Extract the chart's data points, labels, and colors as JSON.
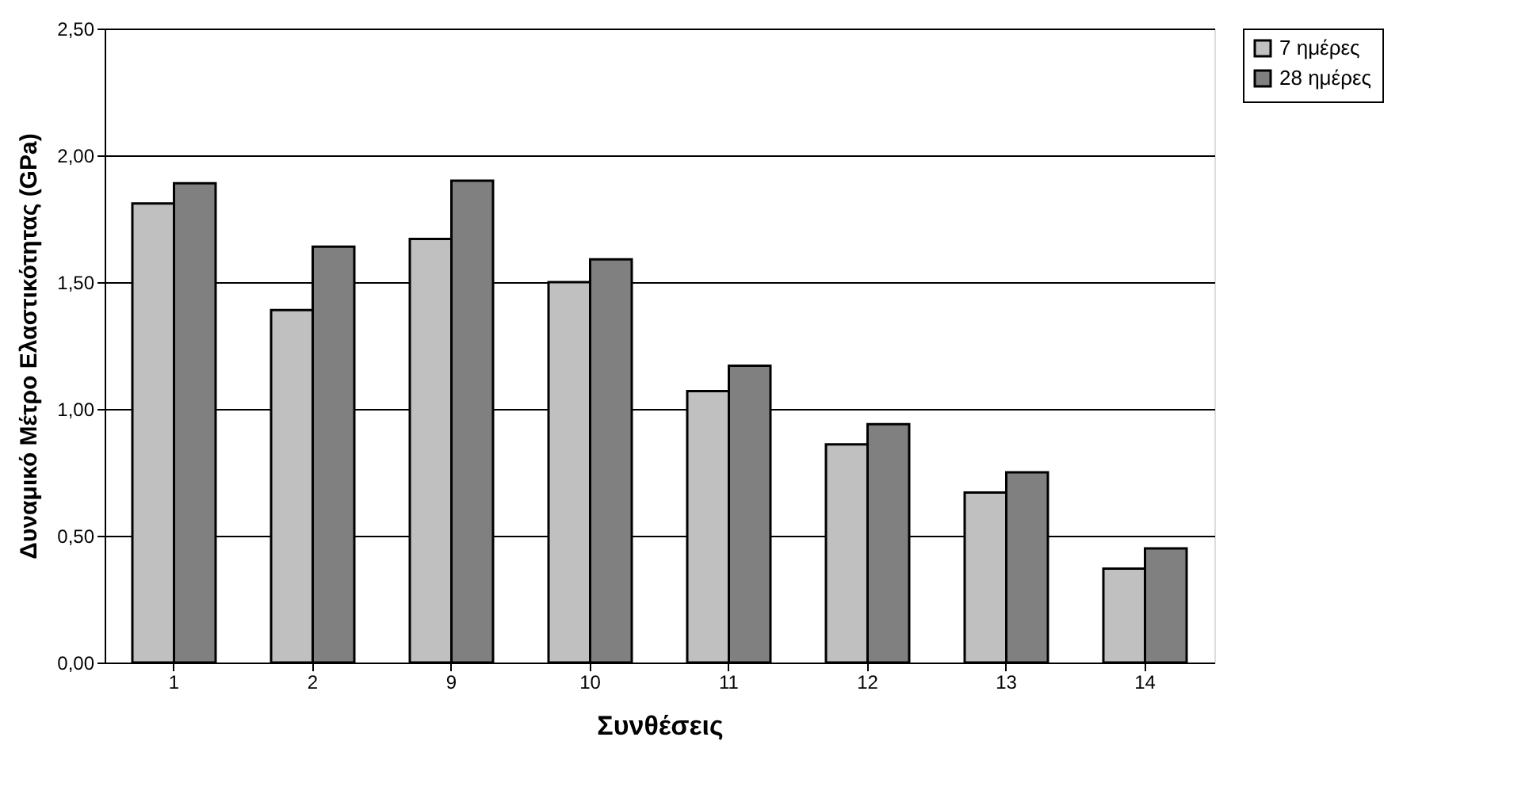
{
  "chart_data": {
    "type": "bar",
    "xlabel": "Συνθέσεις",
    "ylabel": "Δυναμικό Μέτρο Ελαστικότητας (GPa)",
    "categories": [
      "1",
      "2",
      "9",
      "10",
      "11",
      "12",
      "13",
      "14"
    ],
    "series": [
      {
        "name": "7 ημέρες",
        "color": "#c0c0c0",
        "values": [
          1.81,
          1.39,
          1.67,
          1.5,
          1.07,
          0.86,
          0.67,
          0.37
        ]
      },
      {
        "name": "28 ημέρες",
        "color": "#808080",
        "values": [
          1.89,
          1.64,
          1.9,
          1.59,
          1.17,
          0.94,
          0.75,
          0.45
        ]
      }
    ],
    "ylim": [
      0,
      2.5
    ],
    "yticks": [
      {
        "value": 0,
        "label": "0,00"
      },
      {
        "value": 0.5,
        "label": "0,50"
      },
      {
        "value": 1,
        "label": "1,00"
      },
      {
        "value": 1.5,
        "label": "1,50"
      },
      {
        "value": 2,
        "label": "2,00"
      },
      {
        "value": 2.5,
        "label": "2,50"
      }
    ],
    "grid": "y",
    "legend": "right"
  }
}
